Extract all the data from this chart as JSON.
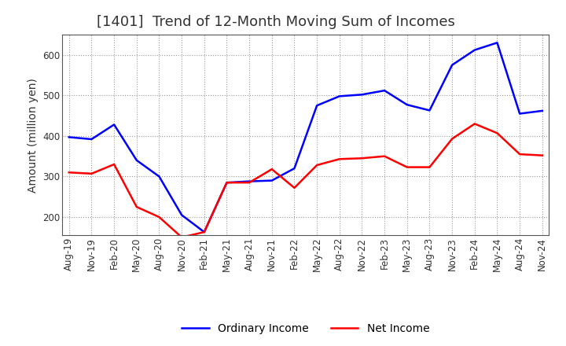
{
  "title": "[1401]  Trend of 12-Month Moving Sum of Incomes",
  "ylabel": "Amount (million yen)",
  "ordinary_income": {
    "dates": [
      "Aug-19",
      "Nov-19",
      "Feb-20",
      "May-20",
      "Aug-20",
      "Nov-20",
      "Feb-21",
      "May-21",
      "Aug-21",
      "Nov-21",
      "Feb-22",
      "May-22",
      "Aug-22",
      "Nov-22",
      "Feb-23",
      "May-23",
      "Aug-23",
      "Nov-23",
      "Feb-24",
      "May-24",
      "Aug-24",
      "Nov-24"
    ],
    "values": [
      397,
      392,
      428,
      340,
      300,
      205,
      163,
      285,
      288,
      290,
      320,
      475,
      498,
      502,
      512,
      477,
      463,
      575,
      612,
      630,
      455,
      462
    ]
  },
  "net_income": {
    "dates": [
      "Aug-19",
      "Nov-19",
      "Feb-20",
      "May-20",
      "Aug-20",
      "Nov-20",
      "Feb-21",
      "May-21",
      "Aug-21",
      "Nov-21",
      "Feb-22",
      "May-22",
      "Aug-22",
      "Nov-22",
      "Feb-23",
      "May-23",
      "Aug-23",
      "Nov-23",
      "Feb-24",
      "May-24",
      "Aug-24",
      "Nov-24"
    ],
    "values": [
      310,
      307,
      330,
      225,
      200,
      150,
      163,
      285,
      285,
      318,
      272,
      328,
      343,
      345,
      350,
      323,
      323,
      393,
      430,
      407,
      355,
      352
    ]
  },
  "ordinary_color": "#0000ff",
  "net_color": "#ff0000",
  "background_color": "#ffffff",
  "grid_color": "#999999",
  "ylim": [
    155,
    650
  ],
  "yticks": [
    200,
    300,
    400,
    500,
    600
  ],
  "legend_labels": [
    "Ordinary Income",
    "Net Income"
  ],
  "title_fontsize": 13,
  "label_fontsize": 10,
  "tick_fontsize": 8.5
}
